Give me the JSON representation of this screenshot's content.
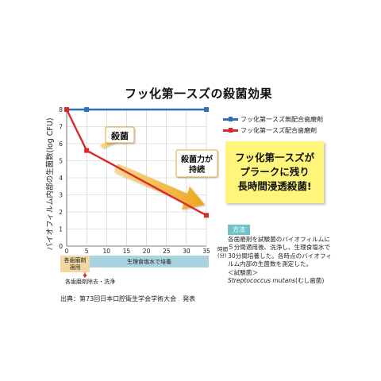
{
  "title": "フッ化第一スズの殺菌効果",
  "legend": {
    "items": [
      {
        "label": "フッ化第一スズ無配合歯磨剤",
        "color": "#2e6fb5"
      },
      {
        "label": "フッ化第一スズ配合歯磨剤",
        "color": "#d92b2b"
      }
    ]
  },
  "callout": {
    "lines": [
      "フッ化第一スズが",
      "プラークに残り",
      "長時間浸透殺菌!"
    ]
  },
  "annotations": {
    "kill": "殺菌",
    "sustain_1": "殺菌力が",
    "sustain_2": "持続"
  },
  "method": {
    "tag": "方法",
    "lines": [
      "各歯磨剤を試験菌のバイオフィルムに",
      "５分間適用後、洗浄し、生理食塩水で",
      "30分間培養した。各時点のバイオフィ",
      "ルム内部の生菌数を測定した。",
      "＜試験菌＞"
    ],
    "organism_latin": "Streptococcus mutans",
    "organism_jp": "(むし歯菌)"
  },
  "timeline": {
    "phase1_line1": "各歯磨剤",
    "phase1_line2": "適用",
    "phase2": "生理食塩水で培養",
    "removal_note": "各歯磨剤除去・洗浄"
  },
  "source": "出典：第73回日本口腔衛生学会学術大会　発表",
  "chart_data": {
    "type": "line",
    "ylabel": "バイオフィルム内部の生菌数(log CFU)",
    "xlabel_line1": "時間",
    "xlabel_line2": "(分)",
    "x_ticks": [
      0,
      5,
      10,
      15,
      20,
      25,
      30,
      35
    ],
    "y_ticks": [
      0,
      1,
      2,
      3,
      4,
      5,
      6,
      7,
      8
    ],
    "xlim": [
      0,
      35
    ],
    "ylim": [
      0,
      8
    ],
    "series": [
      {
        "name": "フッ化第一スズ無配合歯磨剤",
        "color": "#2e6fb5",
        "x": [
          0,
          5,
          35
        ],
        "y": [
          8.0,
          8.0,
          8.0
        ]
      },
      {
        "name": "フッ化第一スズ配合歯磨剤",
        "color": "#d92b2b",
        "x": [
          0,
          5,
          35
        ],
        "y": [
          8.0,
          5.6,
          1.8
        ]
      }
    ]
  }
}
